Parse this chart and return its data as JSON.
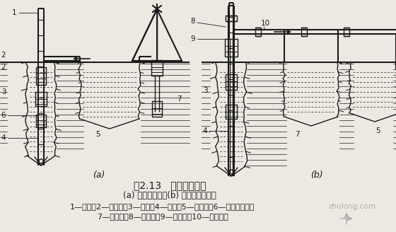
{
  "title": "图2.13   循环排渣方法",
  "subtitle": "(a) 正循环排渣；(b) 泵举反循环排渣",
  "legend_line1": "1—钻杆；2—送水管；3—主机；4—钻头；5—沉淀池；6—潜水泥浆泵；",
  "legend_line2": "7—泥浆池；8—砂石泵；9—抽渣管；10—排渣胶管",
  "label_a": "(a)",
  "label_b": "(b)",
  "bg_color": "#ede9e2",
  "text_color": "#1a1a1a",
  "diagram_color": "#1a1a1a",
  "title_fontsize": 10,
  "subtitle_fontsize": 8.5,
  "legend_fontsize": 8
}
